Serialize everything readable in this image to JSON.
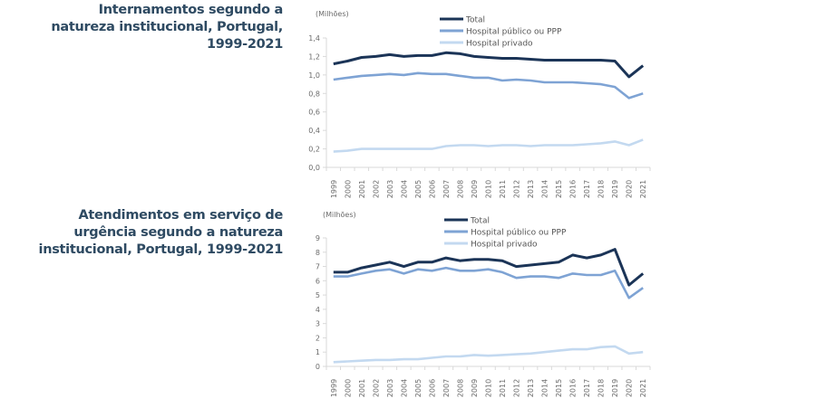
{
  "titles": {
    "chart1": "Internamentos segundo a natureza institucional, Portugal, 1999-2021",
    "chart2": "Atendimentos em serviço de urgência segundo a natureza institucional, Portugal, 1999-2021"
  },
  "colors": {
    "total": "#1b3457",
    "publico": "#7ea3d4",
    "privado": "#c3d9f0",
    "axis": "#d9d9d9"
  },
  "chart_data": [
    {
      "type": "line",
      "title": "Internamentos segundo a natureza institucional, Portugal, 1999-2021",
      "unit_label": "(Milhões)",
      "xlabel": "",
      "ylabel": "(Milhões)",
      "x": [
        "1999",
        "2000",
        "2001",
        "2002",
        "2003",
        "2004",
        "2005",
        "2006",
        "2007",
        "2008",
        "2009",
        "2010",
        "2011",
        "2012",
        "2013",
        "2014",
        "2015",
        "2016",
        "2017",
        "2018",
        "2019",
        "2020",
        "2021"
      ],
      "ylim": [
        0,
        1.4
      ],
      "yticks": [
        0.0,
        0.2,
        0.4,
        0.6,
        0.8,
        1.0,
        1.2,
        1.4
      ],
      "ytick_labels": [
        "0,0",
        "0,2",
        "0,4",
        "0,6",
        "0,8",
        "1,0",
        "1,2",
        "1,4"
      ],
      "grid": false,
      "legend_position": "top-center",
      "series": [
        {
          "name": "Total",
          "key": "total",
          "values": [
            1.12,
            1.15,
            1.19,
            1.2,
            1.22,
            1.2,
            1.21,
            1.21,
            1.24,
            1.23,
            1.2,
            1.19,
            1.18,
            1.18,
            1.17,
            1.16,
            1.16,
            1.16,
            1.16,
            1.16,
            1.15,
            0.98,
            1.1
          ]
        },
        {
          "name": "Hospital público ou PPP",
          "key": "publico",
          "values": [
            0.95,
            0.97,
            0.99,
            1.0,
            1.01,
            1.0,
            1.02,
            1.01,
            1.01,
            0.99,
            0.97,
            0.97,
            0.94,
            0.95,
            0.94,
            0.92,
            0.92,
            0.92,
            0.91,
            0.9,
            0.87,
            0.75,
            0.8
          ]
        },
        {
          "name": "Hospital privado",
          "key": "privado",
          "values": [
            0.17,
            0.18,
            0.2,
            0.2,
            0.2,
            0.2,
            0.2,
            0.2,
            0.23,
            0.24,
            0.24,
            0.23,
            0.24,
            0.24,
            0.23,
            0.24,
            0.24,
            0.24,
            0.25,
            0.26,
            0.28,
            0.24,
            0.3
          ]
        }
      ]
    },
    {
      "type": "line",
      "title": "Atendimentos em serviço de urgência segundo a natureza institucional, Portugal, 1999-2021",
      "unit_label": "(Milhões)",
      "xlabel": "",
      "ylabel": "(Milhões)",
      "x": [
        "1999",
        "2000",
        "2001",
        "2002",
        "2003",
        "2004",
        "2005",
        "2006",
        "2007",
        "2008",
        "2009",
        "2010",
        "2011",
        "2012",
        "2013",
        "2014",
        "2015",
        "2016",
        "2017",
        "2018",
        "2019",
        "2020",
        "2021"
      ],
      "ylim": [
        0,
        9
      ],
      "yticks": [
        0,
        1,
        2,
        3,
        4,
        5,
        6,
        7,
        8,
        9
      ],
      "ytick_labels": [
        "0",
        "1",
        "2",
        "3",
        "4",
        "5",
        "6",
        "7",
        "8",
        "9"
      ],
      "grid": false,
      "legend_position": "top-center",
      "series": [
        {
          "name": "Total",
          "key": "total",
          "values": [
            6.6,
            6.6,
            6.9,
            7.1,
            7.3,
            7.0,
            7.3,
            7.3,
            7.6,
            7.4,
            7.5,
            7.5,
            7.4,
            7.0,
            7.1,
            7.2,
            7.3,
            7.8,
            7.6,
            7.8,
            8.2,
            5.7,
            6.5
          ]
        },
        {
          "name": "Hospital público ou PPP",
          "key": "publico",
          "values": [
            6.3,
            6.3,
            6.5,
            6.7,
            6.8,
            6.5,
            6.8,
            6.7,
            6.9,
            6.7,
            6.7,
            6.8,
            6.6,
            6.2,
            6.3,
            6.3,
            6.2,
            6.5,
            6.4,
            6.4,
            6.7,
            4.8,
            5.5
          ]
        },
        {
          "name": "Hospital privado",
          "key": "privado",
          "values": [
            0.3,
            0.35,
            0.4,
            0.45,
            0.45,
            0.5,
            0.5,
            0.6,
            0.7,
            0.7,
            0.8,
            0.75,
            0.8,
            0.85,
            0.9,
            1.0,
            1.1,
            1.2,
            1.2,
            1.35,
            1.4,
            0.9,
            1.0
          ]
        }
      ]
    }
  ]
}
